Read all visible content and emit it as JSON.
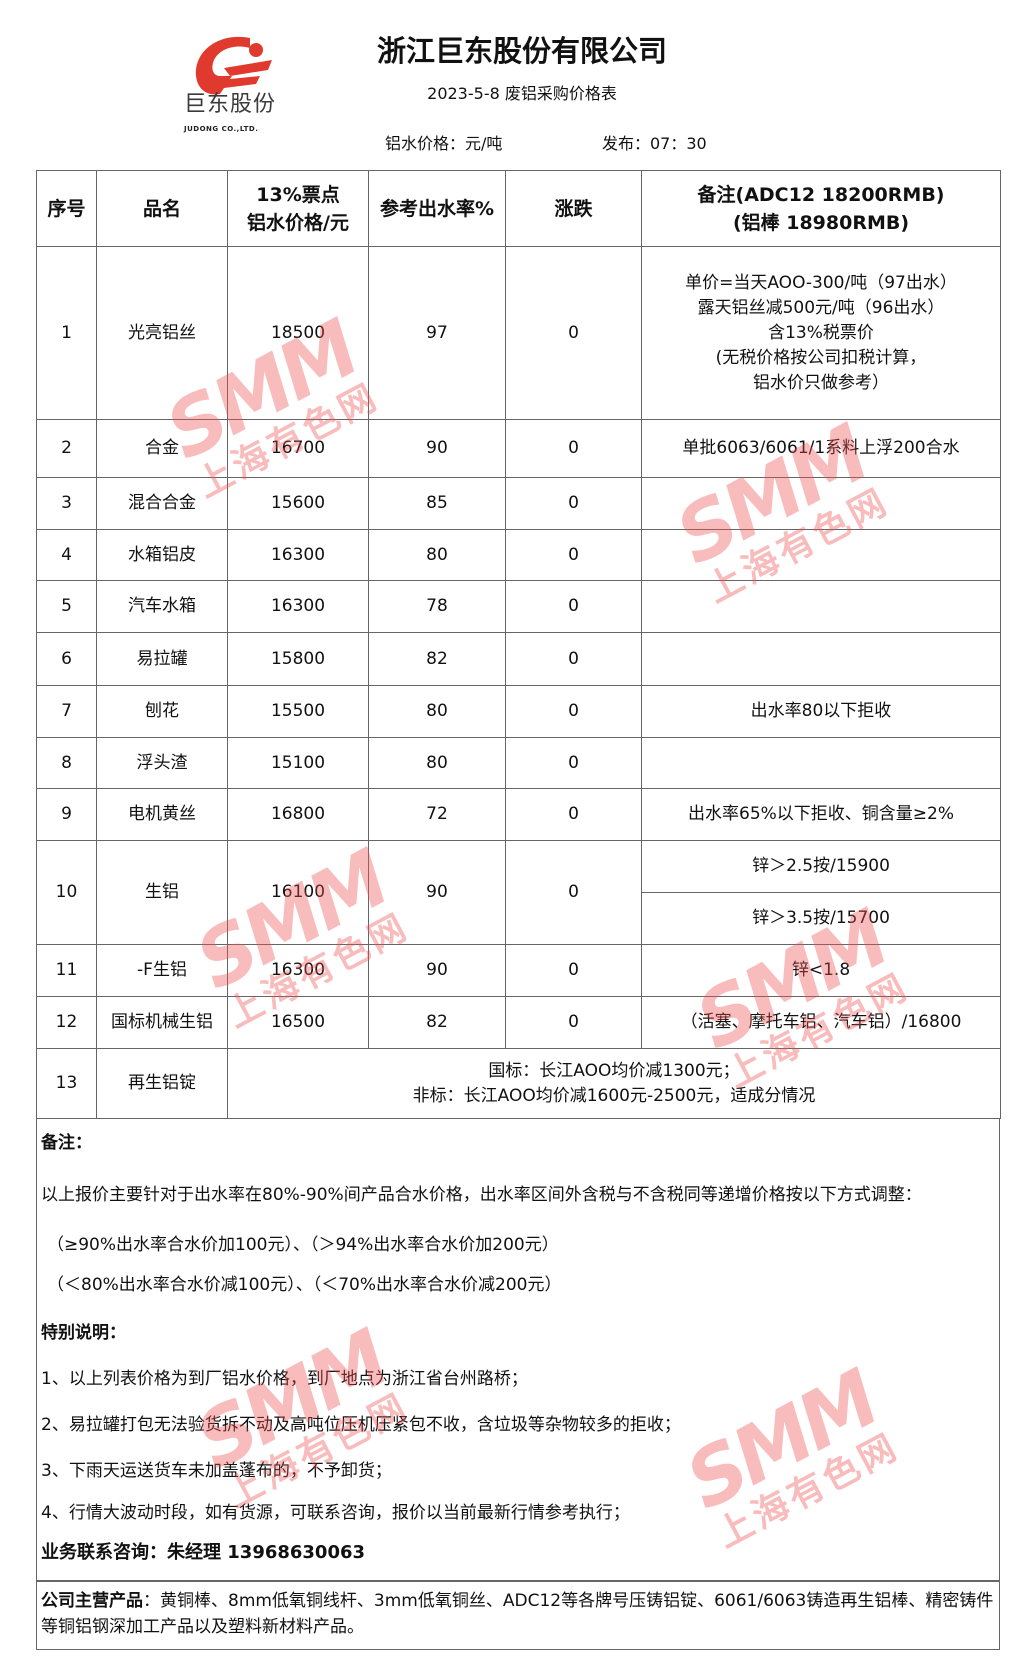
{
  "header": {
    "logo_text_cn": "巨东股份",
    "logo_text_en": "JUDONG CO.,LTD.",
    "company": "浙江巨东股份有限公司",
    "subtitle": "2023-5-8 废铝采购价格表",
    "unit": "铝水价格：元/吨",
    "publish": "发布：07：30"
  },
  "table": {
    "headers": [
      "序号",
      "品名",
      "13%票点\n铝水价格/元",
      "参考出水率%",
      "涨跌",
      "备注(ADC12 18200RMB)\n(铝棒  18980RMB)"
    ],
    "rows": [
      {
        "no": "1",
        "name": "光亮铝丝",
        "price": "18500",
        "rate": "97",
        "change": "0",
        "note": "单价=当天AOO-300/吨（97出水）\n露天铝丝减500元/吨（96出水）\n含13%税票价\n(无税价格按公司扣税计算，\n铝水价只做参考）"
      },
      {
        "no": "2",
        "name": "合金",
        "price": "16700",
        "rate": "90",
        "change": "0",
        "note": "单批6063/6061/1系料上浮200合水"
      },
      {
        "no": "3",
        "name": "混合合金",
        "price": "15600",
        "rate": "85",
        "change": "0",
        "note": ""
      },
      {
        "no": "4",
        "name": "水箱铝皮",
        "price": "16300",
        "rate": "80",
        "change": "0",
        "note": ""
      },
      {
        "no": "5",
        "name": "汽车水箱",
        "price": "16300",
        "rate": "78",
        "change": "0",
        "note": ""
      },
      {
        "no": "6",
        "name": "易拉罐",
        "price": "15800",
        "rate": "82",
        "change": "0",
        "note": ""
      },
      {
        "no": "7",
        "name": "刨花",
        "price": "15500",
        "rate": "80",
        "change": "0",
        "note": "出水率80以下拒收"
      },
      {
        "no": "8",
        "name": "浮头渣",
        "price": "15100",
        "rate": "80",
        "change": "0",
        "note": ""
      },
      {
        "no": "9",
        "name": "电机黄丝",
        "price": "16800",
        "rate": "72",
        "change": "0",
        "note": "出水率65%以下拒收、铜含量≥2%"
      },
      {
        "no": "10",
        "name": "生铝",
        "price": "16100",
        "rate": "90",
        "change": "0",
        "note": "锌＞2.5按/15900",
        "note2": "锌＞3.5按/15700"
      },
      {
        "no": "11",
        "name": "-F生铝",
        "price": "16300",
        "rate": "90",
        "change": "0",
        "note": "锌<1.8"
      },
      {
        "no": "12",
        "name": "国标机械生铝",
        "price": "16500",
        "rate": "82",
        "change": "0",
        "note": "（活塞、摩托车铝、汽车铝）/16800"
      },
      {
        "no": "13",
        "name": "再生铝锭",
        "merged": "国标：长江AOO均价减1300元；\n非标：长江AOO均价减1600元-2500元，适成分情况"
      }
    ]
  },
  "notes": {
    "title": "备注：",
    "line1": "以上报价主要针对于出水率在80%-90%间产品合水价格，出水率区间外含税与不含税同等递增价格按以下方式调整：",
    "line2": "（≥90%出水率合水价加100元）、（＞94%出水率合水价加200元）",
    "line3": "（＜80%出水率合水价减100元）、（＜70%出水率合水价减200元）",
    "special_title": "特别说明：",
    "items": [
      "1、以上列表价格为到厂铝水价格，到厂地点为浙江省台州路桥；",
      "2、易拉罐打包无法验货拆不动及高吨位压机压紧包不收，含垃圾等杂物较多的拒收；",
      "3、下雨天运送货车未加盖蓬布的，不予卸货；",
      "4、行情大波动时段，如有货源，可联系咨询，报价以当前最新行情参考执行；"
    ],
    "contact": "业务联系咨询：朱经理 13968630063"
  },
  "company_products": {
    "label": "公司主营产品",
    "text": "：黄铜棒、8mm低氧铜线杆、3mm低氧铜丝、ADC12等各牌号压铸铝锭、6061/6063铸造再生铝棒、精密铸件等铜铝钢深加工产品以及塑料新材料产品。"
  },
  "watermark": {
    "brand": "SMM",
    "cn": "上海有色网",
    "color": "#f05050"
  },
  "colors": {
    "logo_red": "#e03a2e",
    "border": "#666666"
  }
}
